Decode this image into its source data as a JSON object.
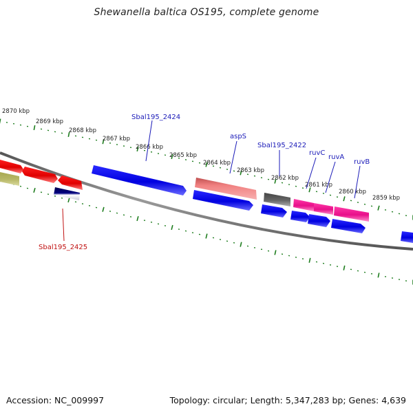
{
  "title": "Shewanella baltica OS195, complete genome",
  "footer": {
    "accession": "Accession: NC_009997",
    "stats": "Topology: circular; Length: 5,347,283 bp; Genes: 4,639"
  },
  "colors": {
    "background": "#ffffff",
    "tick": "#1e7d1e",
    "backbone": "#777777",
    "label_blue": "#1a1ab8",
    "label_red": "#c01010"
  },
  "scale_labels": [
    "2870 kbp",
    "2869 kbp",
    "2868 kbp",
    "2867 kbp",
    "2866 kbp",
    "2865 kbp",
    "2864 kbp",
    "2863 kbp",
    "2862 kbp",
    "2861 kbp",
    "2860 kbp",
    "2859 kbp"
  ],
  "gene_labels": {
    "sbal2424": "Sbal195_2424",
    "asps": "aspS",
    "sbal2422": "Sbal195_2422",
    "ruvc": "ruvC",
    "ruva": "ruvA",
    "ruvb": "ruvB",
    "sbal2425": "Sbal195_2425"
  }
}
